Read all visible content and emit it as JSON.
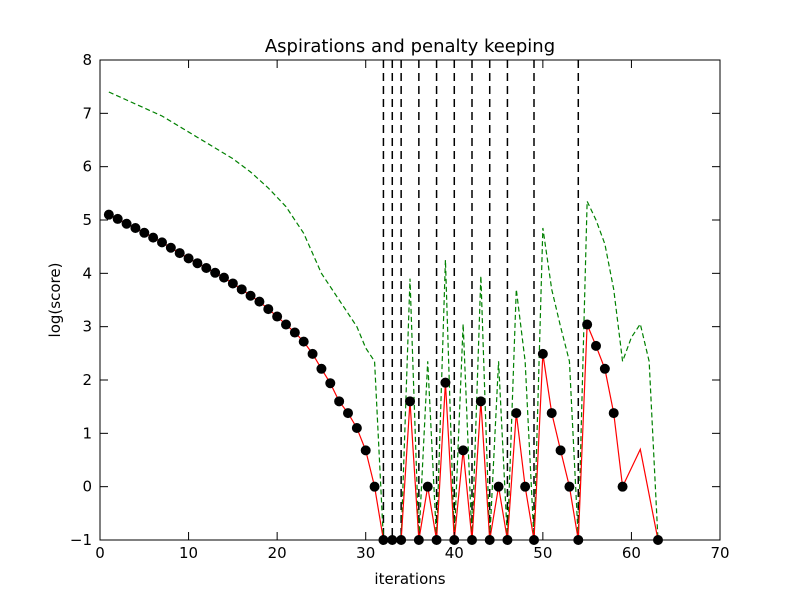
{
  "chart_data": {
    "type": "line",
    "title": "Aspirations and penalty keeping",
    "xlabel": "iterations",
    "ylabel": "log(score)",
    "xlim": [
      0,
      70
    ],
    "ylim": [
      -1,
      8
    ],
    "xticks": [
      0,
      10,
      20,
      30,
      40,
      50,
      60,
      70
    ],
    "yticks": [
      -1,
      0,
      1,
      2,
      3,
      4,
      5,
      6,
      7,
      8
    ],
    "xtick_labels": [
      "0",
      "10",
      "20",
      "30",
      "40",
      "50",
      "60",
      "70"
    ],
    "ytick_labels": [
      "−1",
      "0",
      "1",
      "2",
      "3",
      "4",
      "5",
      "6",
      "7",
      "8"
    ],
    "grid": false,
    "legend": "none",
    "series": [
      {
        "style": "solid-red-with-black-markers",
        "color": "#ff0000",
        "marker_color": "#000000",
        "x": [
          1,
          2,
          3,
          4,
          5,
          6,
          7,
          8,
          9,
          10,
          11,
          12,
          13,
          14,
          15,
          16,
          17,
          18,
          19,
          20,
          21,
          22,
          23,
          24,
          25,
          26,
          27,
          28,
          29,
          30,
          31,
          32,
          33,
          34,
          35,
          36,
          37,
          38,
          39,
          40,
          41,
          42,
          43,
          44,
          45,
          46,
          47,
          48,
          49,
          50,
          51,
          52,
          53,
          54,
          55,
          56,
          57,
          58,
          59,
          61,
          63
        ],
        "y": [
          5.1,
          5.02,
          4.93,
          4.85,
          4.76,
          4.67,
          4.58,
          4.48,
          4.38,
          4.28,
          4.19,
          4.1,
          4.01,
          3.92,
          3.81,
          3.7,
          3.58,
          3.47,
          3.33,
          3.19,
          3.04,
          2.89,
          2.72,
          2.49,
          2.21,
          1.94,
          1.6,
          1.38,
          1.1,
          0.68,
          0.0,
          -1.0,
          -1.0,
          -1.0,
          1.6,
          -1.0,
          0.0,
          -1.0,
          1.95,
          -1.0,
          0.68,
          -1.0,
          1.6,
          -1.0,
          0.0,
          -1.0,
          1.38,
          0.0,
          -1.0,
          2.49,
          1.38,
          0.68,
          0.0,
          -1.0,
          3.04,
          2.64,
          2.21,
          1.38,
          0.0,
          0.7,
          -1.0
        ],
        "markers_at_x": [
          1,
          2,
          3,
          4,
          5,
          6,
          7,
          8,
          9,
          10,
          11,
          12,
          13,
          14,
          15,
          16,
          17,
          18,
          19,
          20,
          21,
          22,
          23,
          24,
          25,
          26,
          27,
          28,
          29,
          30,
          31,
          32,
          33,
          34,
          35,
          36,
          37,
          38,
          39,
          40,
          41,
          42,
          43,
          44,
          45,
          46,
          47,
          48,
          49,
          50,
          51,
          52,
          53,
          54,
          55,
          56,
          57,
          58,
          59,
          63
        ]
      },
      {
        "style": "dashed-green",
        "color": "#008000",
        "x": [
          1,
          3,
          5,
          7,
          9,
          11,
          13,
          15,
          17,
          19,
          21,
          23,
          25,
          27,
          29,
          30,
          31,
          32,
          33,
          34,
          35,
          36,
          37,
          38,
          39,
          40,
          41,
          42,
          43,
          44,
          45,
          46,
          47,
          48,
          49,
          50,
          51,
          52,
          53,
          54,
          55,
          56,
          57,
          58,
          59,
          60,
          61,
          62,
          63
        ],
        "y": [
          7.4,
          7.25,
          7.1,
          6.95,
          6.75,
          6.55,
          6.35,
          6.15,
          5.9,
          5.6,
          5.25,
          4.75,
          4.0,
          3.5,
          3.0,
          2.6,
          2.35,
          -1.0,
          -1.0,
          -1.0,
          3.9,
          -1.0,
          2.35,
          -1.0,
          4.25,
          -1.0,
          3.05,
          -1.0,
          3.95,
          -1.0,
          2.35,
          -1.0,
          3.7,
          2.35,
          -1.0,
          4.85,
          3.7,
          3.0,
          2.35,
          -1.0,
          5.35,
          5.0,
          4.55,
          3.7,
          2.35,
          2.8,
          3.05,
          2.35,
          -1.0
        ]
      }
    ],
    "vlines": {
      "style": "dashed-black",
      "color": "#000000",
      "x": [
        32,
        33,
        34,
        36,
        38,
        40,
        42,
        44,
        46,
        49,
        54
      ]
    }
  }
}
